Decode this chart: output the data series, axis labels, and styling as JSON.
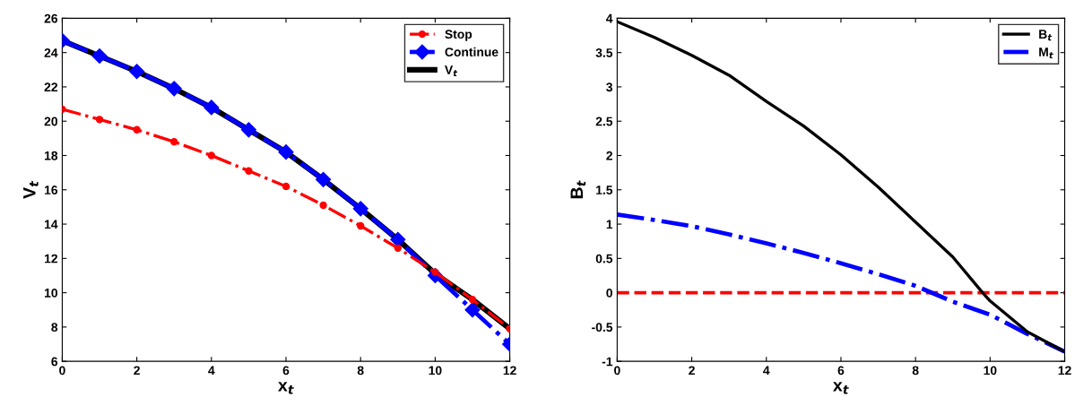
{
  "chart_data": [
    {
      "type": "line",
      "xlabel": "x$_{t}$",
      "ylabel": "V$_{t}$",
      "x": [
        0,
        1,
        2,
        3,
        4,
        5,
        6,
        7,
        8,
        9,
        10,
        11,
        12
      ],
      "xlim": [
        0,
        12
      ],
      "xticks": [
        0,
        2,
        4,
        6,
        8,
        10,
        12
      ],
      "ylim": [
        6,
        26
      ],
      "yticks": [
        6,
        8,
        10,
        12,
        14,
        16,
        18,
        20,
        22,
        24,
        26
      ],
      "grid": false,
      "legend": "top right",
      "series": [
        {
          "name": "Stop",
          "color": "#ff0000",
          "marker": "circle",
          "line_style": "dashdot",
          "values": [
            20.7,
            20.1,
            19.5,
            18.8,
            18.0,
            17.1,
            16.2,
            15.1,
            13.9,
            12.6,
            11.2,
            9.6,
            7.9
          ]
        },
        {
          "name": "Continue",
          "color": "#0000ff",
          "marker": "diamond",
          "line_style": "dashdot",
          "values": [
            24.7,
            23.8,
            22.9,
            21.9,
            20.8,
            19.5,
            18.2,
            16.6,
            14.9,
            13.1,
            11.0,
            9.0,
            7.0
          ]
        },
        {
          "name": "V$_{t}$",
          "color": "#000000",
          "marker": "none",
          "line_style": "solid",
          "values": [
            24.7,
            23.8,
            22.9,
            21.9,
            20.8,
            19.5,
            18.2,
            16.6,
            14.9,
            13.1,
            11.1,
            9.6,
            7.9
          ]
        }
      ]
    },
    {
      "type": "line",
      "xlabel": "x$_{t}$",
      "ylabel": "B$_{t}$",
      "x": [
        0,
        1,
        2,
        3,
        4,
        5,
        6,
        7,
        8,
        9,
        10,
        11,
        12
      ],
      "xlim": [
        0,
        12
      ],
      "xticks": [
        0,
        2,
        4,
        6,
        8,
        10,
        12
      ],
      "ylim": [
        -1,
        4
      ],
      "yticks": [
        -1,
        -0.5,
        0,
        0.5,
        1,
        1.5,
        2,
        2.5,
        3,
        3.5,
        4
      ],
      "grid": false,
      "legend": "top right",
      "ref_lines": [
        {
          "axis": "y",
          "value": 0,
          "color": "#ff0000",
          "line_style": "dashed"
        }
      ],
      "series": [
        {
          "name": "B$_{t}$",
          "color": "#000000",
          "marker": "none",
          "line_style": "solid",
          "x": [
            0,
            1,
            2,
            3,
            4,
            5,
            6,
            7,
            8,
            9,
            9.8,
            10,
            11,
            12
          ],
          "values": [
            3.95,
            3.72,
            3.46,
            3.17,
            2.79,
            2.43,
            2.01,
            1.54,
            1.03,
            0.52,
            0,
            -0.12,
            -0.57,
            -0.86
          ]
        },
        {
          "name": "M$_{t}$",
          "color": "#0000ff",
          "marker": "none",
          "line_style": "dashdot",
          "values": [
            1.14,
            1.06,
            0.97,
            0.85,
            0.72,
            0.58,
            0.43,
            0.27,
            0.1,
            -0.13,
            -0.32,
            -0.6,
            -0.86
          ]
        }
      ]
    }
  ]
}
